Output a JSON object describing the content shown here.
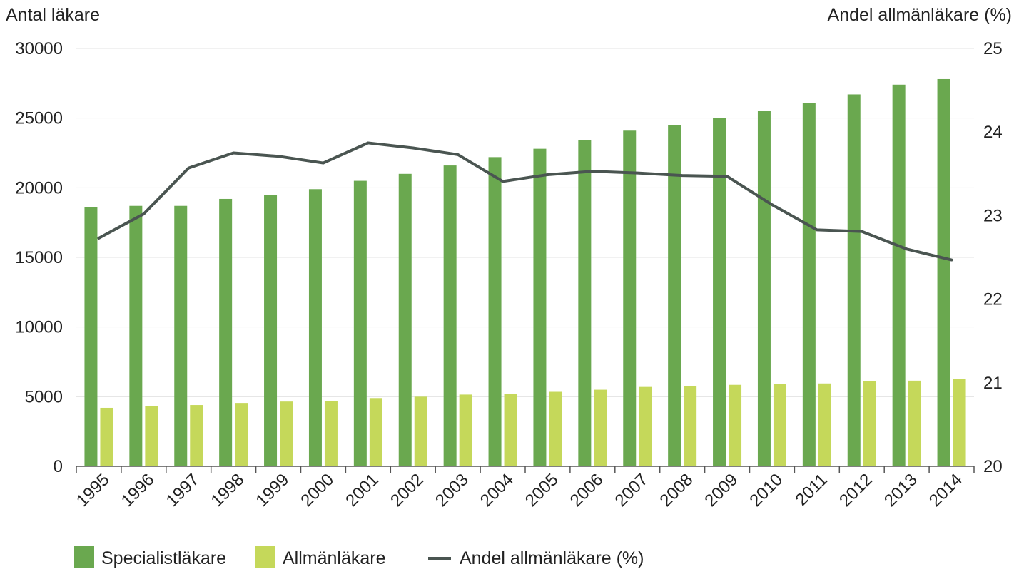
{
  "chart_data": {
    "type": "bar",
    "y_left_label": "Antal läkare",
    "y_right_label": "Andel allmänläkare (%)",
    "ylim_left": [
      0,
      30000
    ],
    "ylim_right": [
      20,
      25
    ],
    "y_left_ticks": [
      "0",
      "5000",
      "10000",
      "15000",
      "20000",
      "25000",
      "30000"
    ],
    "y_right_ticks": [
      "20",
      "21",
      "22",
      "23",
      "24",
      "25"
    ],
    "grid": true,
    "legend_position": "bottom-left",
    "categories": [
      "1995",
      "1996",
      "1997",
      "1998",
      "1999",
      "2000",
      "2001",
      "2002",
      "2003",
      "2004",
      "2005",
      "2006",
      "2007",
      "2008",
      "2009",
      "2010",
      "2011",
      "2012",
      "2013",
      "2014"
    ],
    "series": [
      {
        "name": "Specialistläkare",
        "kind": "bar",
        "axis": "left",
        "color": "#6aa84f",
        "values": [
          18600,
          18700,
          18700,
          19200,
          19500,
          19900,
          20500,
          21000,
          21600,
          22200,
          22800,
          23400,
          24100,
          24500,
          25000,
          25500,
          26100,
          26700,
          27400,
          27800
        ]
      },
      {
        "name": "Allmänläkare",
        "kind": "bar",
        "axis": "left",
        "color": "#c5d85a",
        "values": [
          4200,
          4300,
          4400,
          4550,
          4650,
          4700,
          4900,
          5000,
          5150,
          5200,
          5350,
          5500,
          5700,
          5750,
          5850,
          5900,
          5950,
          6100,
          6150,
          6250
        ]
      },
      {
        "name": "Andel allmänläkare (%)",
        "kind": "line",
        "axis": "right",
        "color": "#4a5551",
        "values": [
          22.73,
          23.02,
          23.57,
          23.75,
          23.71,
          23.63,
          23.87,
          23.81,
          23.73,
          23.41,
          23.49,
          23.53,
          23.51,
          23.48,
          23.47,
          23.13,
          22.83,
          22.81,
          22.6,
          22.47
        ]
      }
    ]
  }
}
